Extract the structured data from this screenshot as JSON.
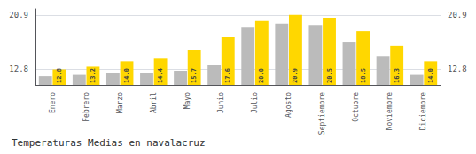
{
  "chart_data": {
    "type": "bar",
    "title": "Temperaturas Medias en navalacruz",
    "categories": [
      "Enero",
      "Febrero",
      "Marzo",
      "Abril",
      "Mayo",
      "Junio",
      "Julio",
      "Agosto",
      "Septiembre",
      "Octubre",
      "Noviembre",
      "Diciembre"
    ],
    "series": [
      {
        "color": "#BBBBBB",
        "values": [
          11.8,
          12.0,
          12.2,
          12.3,
          12.6,
          13.5,
          19.0,
          19.6,
          19.4,
          16.8,
          14.8,
          12.0
        ]
      },
      {
        "color": "#FFD700",
        "values": [
          12.8,
          13.2,
          14.0,
          14.4,
          15.7,
          17.6,
          20.0,
          20.9,
          20.5,
          18.5,
          16.3,
          14.0
        ],
        "data_labels": true,
        "value_labels": [
          "12.8",
          "13.2",
          "14.0",
          "14.4",
          "15.7",
          "17.6",
          "20.0",
          "20.9",
          "20.5",
          "18.5",
          "16.3",
          "14.0"
        ]
      }
    ],
    "ylim": [
      10.5,
      21.8
    ],
    "yticks": [
      12.8,
      20.9
    ],
    "y2lim": [
      10.5,
      21.8
    ],
    "y2ticks": [
      12.8,
      20.9
    ],
    "grid": true
  }
}
